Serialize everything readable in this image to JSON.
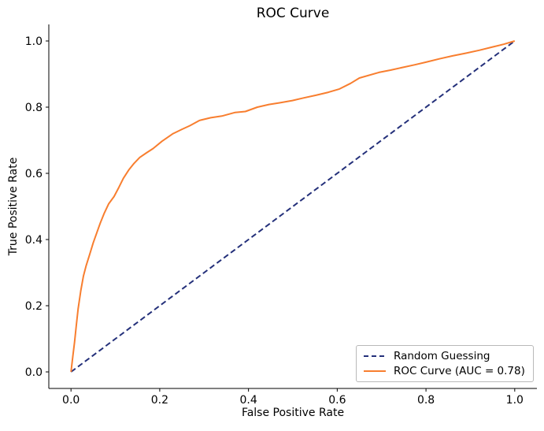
{
  "chart_data": {
    "type": "line",
    "title": "ROC Curve",
    "xlabel": "False Positive Rate",
    "ylabel": "True Positive Rate",
    "xticks": [
      0.0,
      0.2,
      0.4,
      0.6,
      0.8,
      1.0
    ],
    "yticks": [
      0.0,
      0.2,
      0.4,
      0.6,
      0.8,
      1.0
    ],
    "xtick_labels": [
      "0.0",
      "0.2",
      "0.4",
      "0.6",
      "0.8",
      "1.0"
    ],
    "ytick_labels": [
      "0.0",
      "0.2",
      "0.4",
      "0.6",
      "0.8",
      "1.0"
    ],
    "xlim": [
      -0.05,
      1.05
    ],
    "ylim": [
      -0.05,
      1.05
    ],
    "grid": false,
    "legend_position": "lower right",
    "axis_color": "#000000",
    "text_color": "#000000",
    "auc": 0.78,
    "series": [
      {
        "name": "Random Guessing",
        "style": "dashed",
        "color": "#24307a",
        "points": [
          [
            0,
            0
          ],
          [
            1,
            1
          ]
        ]
      },
      {
        "name": "ROC Curve (AUC = 0.78)",
        "style": "solid",
        "color": "#f87e2f",
        "points": [
          [
            0.0,
            0.0
          ],
          [
            0.004,
            0.045
          ],
          [
            0.008,
            0.09
          ],
          [
            0.012,
            0.14
          ],
          [
            0.016,
            0.19
          ],
          [
            0.022,
            0.245
          ],
          [
            0.028,
            0.29
          ],
          [
            0.034,
            0.32
          ],
          [
            0.042,
            0.355
          ],
          [
            0.05,
            0.39
          ],
          [
            0.058,
            0.42
          ],
          [
            0.066,
            0.45
          ],
          [
            0.075,
            0.48
          ],
          [
            0.085,
            0.508
          ],
          [
            0.097,
            0.53
          ],
          [
            0.108,
            0.558
          ],
          [
            0.118,
            0.585
          ],
          [
            0.13,
            0.61
          ],
          [
            0.142,
            0.63
          ],
          [
            0.155,
            0.648
          ],
          [
            0.17,
            0.662
          ],
          [
            0.185,
            0.675
          ],
          [
            0.205,
            0.697
          ],
          [
            0.23,
            0.72
          ],
          [
            0.25,
            0.733
          ],
          [
            0.268,
            0.744
          ],
          [
            0.29,
            0.76
          ],
          [
            0.315,
            0.768
          ],
          [
            0.34,
            0.773
          ],
          [
            0.37,
            0.784
          ],
          [
            0.393,
            0.787
          ],
          [
            0.42,
            0.8
          ],
          [
            0.446,
            0.808
          ],
          [
            0.47,
            0.813
          ],
          [
            0.499,
            0.82
          ],
          [
            0.525,
            0.828
          ],
          [
            0.552,
            0.836
          ],
          [
            0.58,
            0.845
          ],
          [
            0.605,
            0.855
          ],
          [
            0.63,
            0.872
          ],
          [
            0.65,
            0.888
          ],
          [
            0.694,
            0.905
          ],
          [
            0.72,
            0.912
          ],
          [
            0.747,
            0.92
          ],
          [
            0.775,
            0.928
          ],
          [
            0.8,
            0.936
          ],
          [
            0.83,
            0.946
          ],
          [
            0.86,
            0.955
          ],
          [
            0.89,
            0.963
          ],
          [
            0.92,
            0.972
          ],
          [
            0.95,
            0.982
          ],
          [
            0.975,
            0.99
          ],
          [
            1.0,
            1.0
          ]
        ]
      }
    ]
  }
}
